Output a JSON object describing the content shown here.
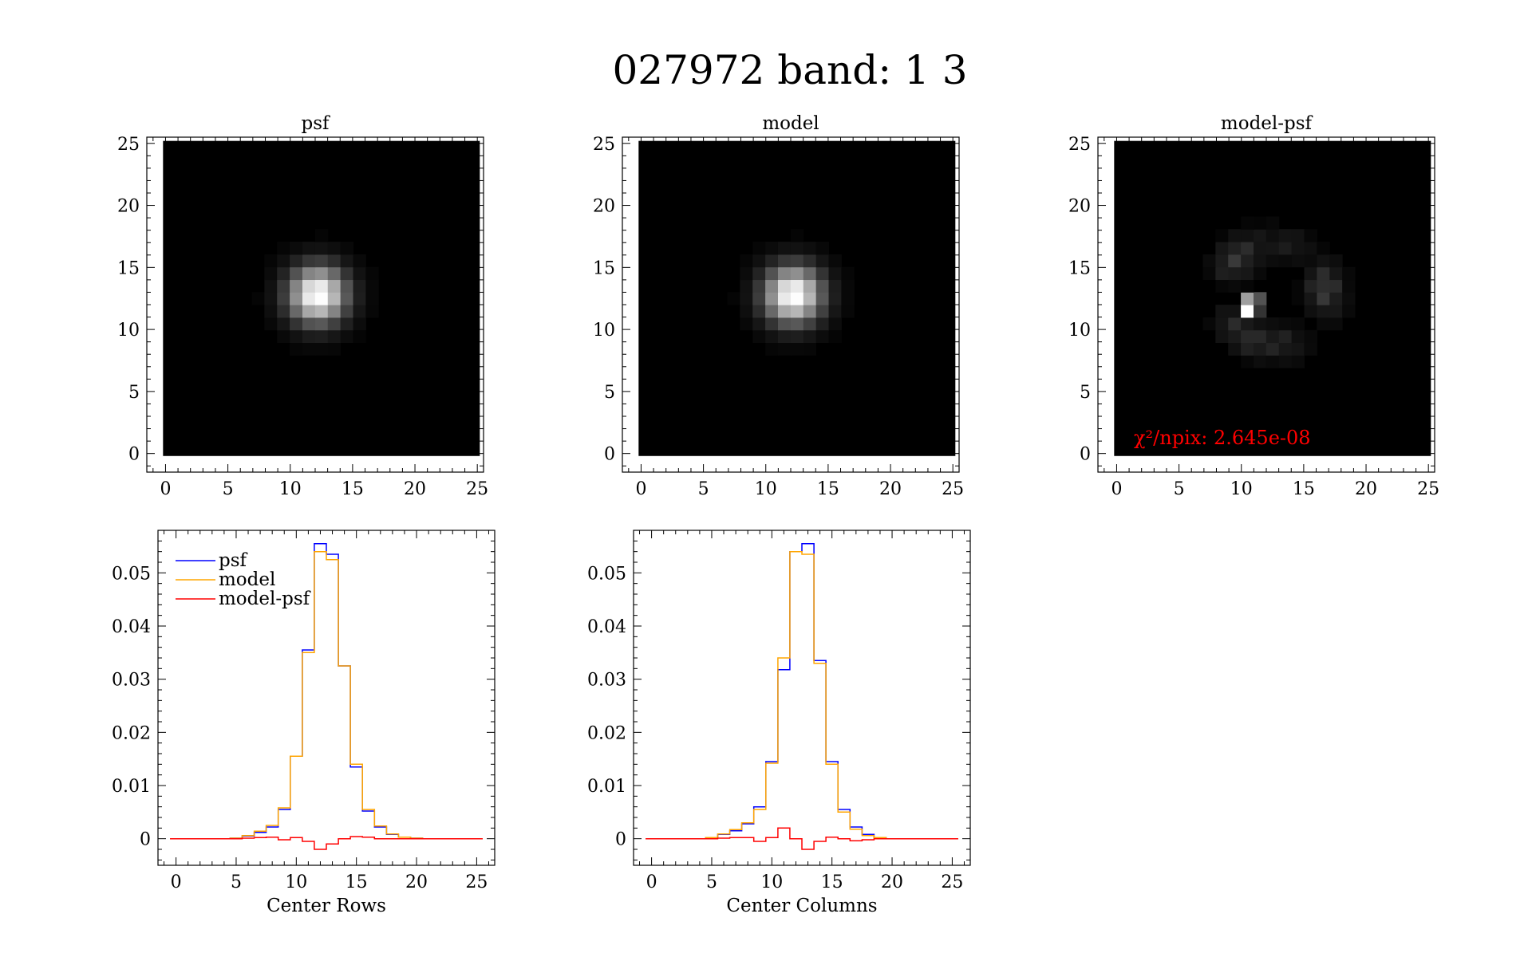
{
  "title": "027972 band: 1 3",
  "chart_data": [
    {
      "type": "heatmap",
      "title": "psf",
      "xlim": [
        -1.5,
        25.5
      ],
      "ylim": [
        -1.5,
        25.5
      ],
      "xticks": [
        "0",
        "5",
        "10",
        "15",
        "20",
        "25"
      ],
      "yticks": [
        "0",
        "5",
        "10",
        "15",
        "20",
        "25"
      ],
      "center": [
        11.7,
        12.3
      ],
      "colormap": "grayscale"
    },
    {
      "type": "heatmap",
      "title": "model",
      "xlim": [
        -1.5,
        25.5
      ],
      "ylim": [
        -1.5,
        25.5
      ],
      "xticks": [
        "0",
        "5",
        "10",
        "15",
        "20",
        "25"
      ],
      "yticks": [
        "0",
        "5",
        "10",
        "15",
        "20",
        "25"
      ],
      "center": [
        11.7,
        12.3
      ],
      "colormap": "grayscale"
    },
    {
      "type": "heatmap",
      "title": "model-psf",
      "xlim": [
        -1.5,
        25.5
      ],
      "ylim": [
        -1.5,
        25.5
      ],
      "xticks": [
        "0",
        "5",
        "10",
        "15",
        "20",
        "25"
      ],
      "yticks": [
        "0",
        "5",
        "10",
        "15",
        "20",
        "25"
      ],
      "annotation": "χ²/npix: 2.645e-08",
      "annotation_color": "#ff0000",
      "colormap": "grayscale"
    },
    {
      "type": "line",
      "xlabel": "Center Rows",
      "xlim": [
        -1.5,
        26.5
      ],
      "ylim": [
        -0.005,
        0.058
      ],
      "xticks": [
        "0",
        "5",
        "10",
        "15",
        "20",
        "25"
      ],
      "yticks": [
        "0",
        "0.01",
        "0.02",
        "0.03",
        "0.04",
        "0.05"
      ],
      "legend_position": "top-left",
      "x": [
        0,
        1,
        2,
        3,
        4,
        5,
        6,
        7,
        8,
        9,
        10,
        11,
        12,
        13,
        14,
        15,
        16,
        17,
        18,
        19,
        20,
        21,
        22,
        23,
        24,
        25
      ],
      "series": [
        {
          "name": "psf",
          "color": "#0000ff",
          "values": [
            0,
            0,
            0,
            0,
            0,
            0.0001,
            0.0005,
            0.0012,
            0.0022,
            0.0055,
            0.0155,
            0.0355,
            0.0555,
            0.0535,
            0.0325,
            0.0135,
            0.0052,
            0.0022,
            0.0008,
            0.0003,
            0.0001,
            0,
            0,
            0,
            0,
            0
          ]
        },
        {
          "name": "model",
          "color": "#ffa500",
          "values": [
            0,
            0,
            0,
            0,
            0,
            0.0001,
            0.0006,
            0.0014,
            0.0025,
            0.0058,
            0.0155,
            0.035,
            0.054,
            0.0525,
            0.0325,
            0.014,
            0.0055,
            0.0024,
            0.0009,
            0.0003,
            0.0001,
            0,
            0,
            0,
            0,
            0
          ]
        },
        {
          "name": "model-psf",
          "color": "#ff0000",
          "values": [
            0,
            0,
            0,
            0,
            0,
            0,
            0.0001,
            0.0002,
            0.0003,
            -0.0002,
            0.0002,
            -0.0005,
            -0.002,
            -0.001,
            0,
            0.0004,
            0.0003,
            0,
            0,
            0,
            0,
            0,
            0,
            0,
            0,
            0
          ]
        }
      ]
    },
    {
      "type": "line",
      "xlabel": "Center Columns",
      "xlim": [
        -1.5,
        26.5
      ],
      "ylim": [
        -0.005,
        0.058
      ],
      "xticks": [
        "0",
        "5",
        "10",
        "15",
        "20",
        "25"
      ],
      "yticks": [
        "0",
        "0.01",
        "0.02",
        "0.03",
        "0.04",
        "0.05"
      ],
      "x": [
        0,
        1,
        2,
        3,
        4,
        5,
        6,
        7,
        8,
        9,
        10,
        11,
        12,
        13,
        14,
        15,
        16,
        17,
        18,
        19,
        20,
        21,
        22,
        23,
        24,
        25
      ],
      "series": [
        {
          "name": "psf",
          "color": "#0000ff",
          "values": [
            0,
            0,
            0,
            0,
            0,
            0.0002,
            0.0008,
            0.0015,
            0.0028,
            0.006,
            0.0145,
            0.0318,
            0.054,
            0.0555,
            0.0335,
            0.0145,
            0.0055,
            0.0022,
            0.0008,
            0.0002,
            0,
            0,
            0,
            0,
            0,
            0
          ]
        },
        {
          "name": "model",
          "color": "#ffa500",
          "values": [
            0,
            0,
            0,
            0,
            0,
            0.0002,
            0.0009,
            0.0017,
            0.003,
            0.0055,
            0.0142,
            0.034,
            0.054,
            0.0535,
            0.033,
            0.014,
            0.005,
            0.0018,
            0.0006,
            0.0002,
            0,
            0,
            0,
            0,
            0,
            0
          ]
        },
        {
          "name": "model-psf",
          "color": "#ff0000",
          "values": [
            0,
            0,
            0,
            0,
            0,
            0,
            0.0001,
            0.0002,
            0.0002,
            -0.0005,
            0.0002,
            0.002,
            0,
            -0.002,
            -0.0005,
            0.0003,
            0,
            -0.0004,
            -0.0002,
            0,
            0,
            0,
            0,
            0,
            0,
            0
          ]
        }
      ]
    }
  ]
}
